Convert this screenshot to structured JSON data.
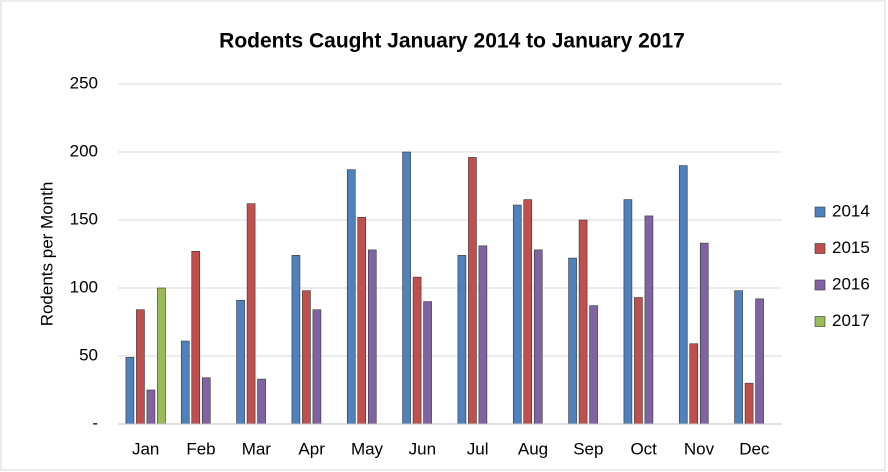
{
  "chart_data": {
    "type": "bar",
    "title": "Rodents Caught January 2014 to January 2017",
    "y_label": "Rodents per Month",
    "categories": [
      "Jan",
      "Feb",
      "Mar",
      "Apr",
      "May",
      "Jun",
      "Jul",
      "Aug",
      "Sep",
      "Oct",
      "Nov",
      "Dec"
    ],
    "series": [
      {
        "name": "2014",
        "color": "#4f81bd",
        "values": [
          49,
          61,
          91,
          124,
          187,
          200,
          124,
          161,
          122,
          165,
          190,
          98
        ]
      },
      {
        "name": "2015",
        "color": "#c0504d",
        "values": [
          84,
          127,
          162,
          98,
          152,
          108,
          196,
          165,
          150,
          93,
          59,
          30
        ]
      },
      {
        "name": "2016",
        "color": "#8064a2",
        "values": [
          25,
          34,
          33,
          84,
          128,
          90,
          131,
          128,
          87,
          153,
          133,
          92
        ]
      },
      {
        "name": "2017",
        "color": "#9bbb59",
        "values": [
          100,
          null,
          null,
          null,
          null,
          null,
          null,
          null,
          null,
          null,
          null,
          null
        ]
      }
    ],
    "ylim": [
      0,
      250
    ],
    "yticks": [
      {
        "value": 0,
        "label": "-"
      },
      50,
      100,
      150,
      200,
      250
    ],
    "grid": true,
    "legend": "right"
  }
}
